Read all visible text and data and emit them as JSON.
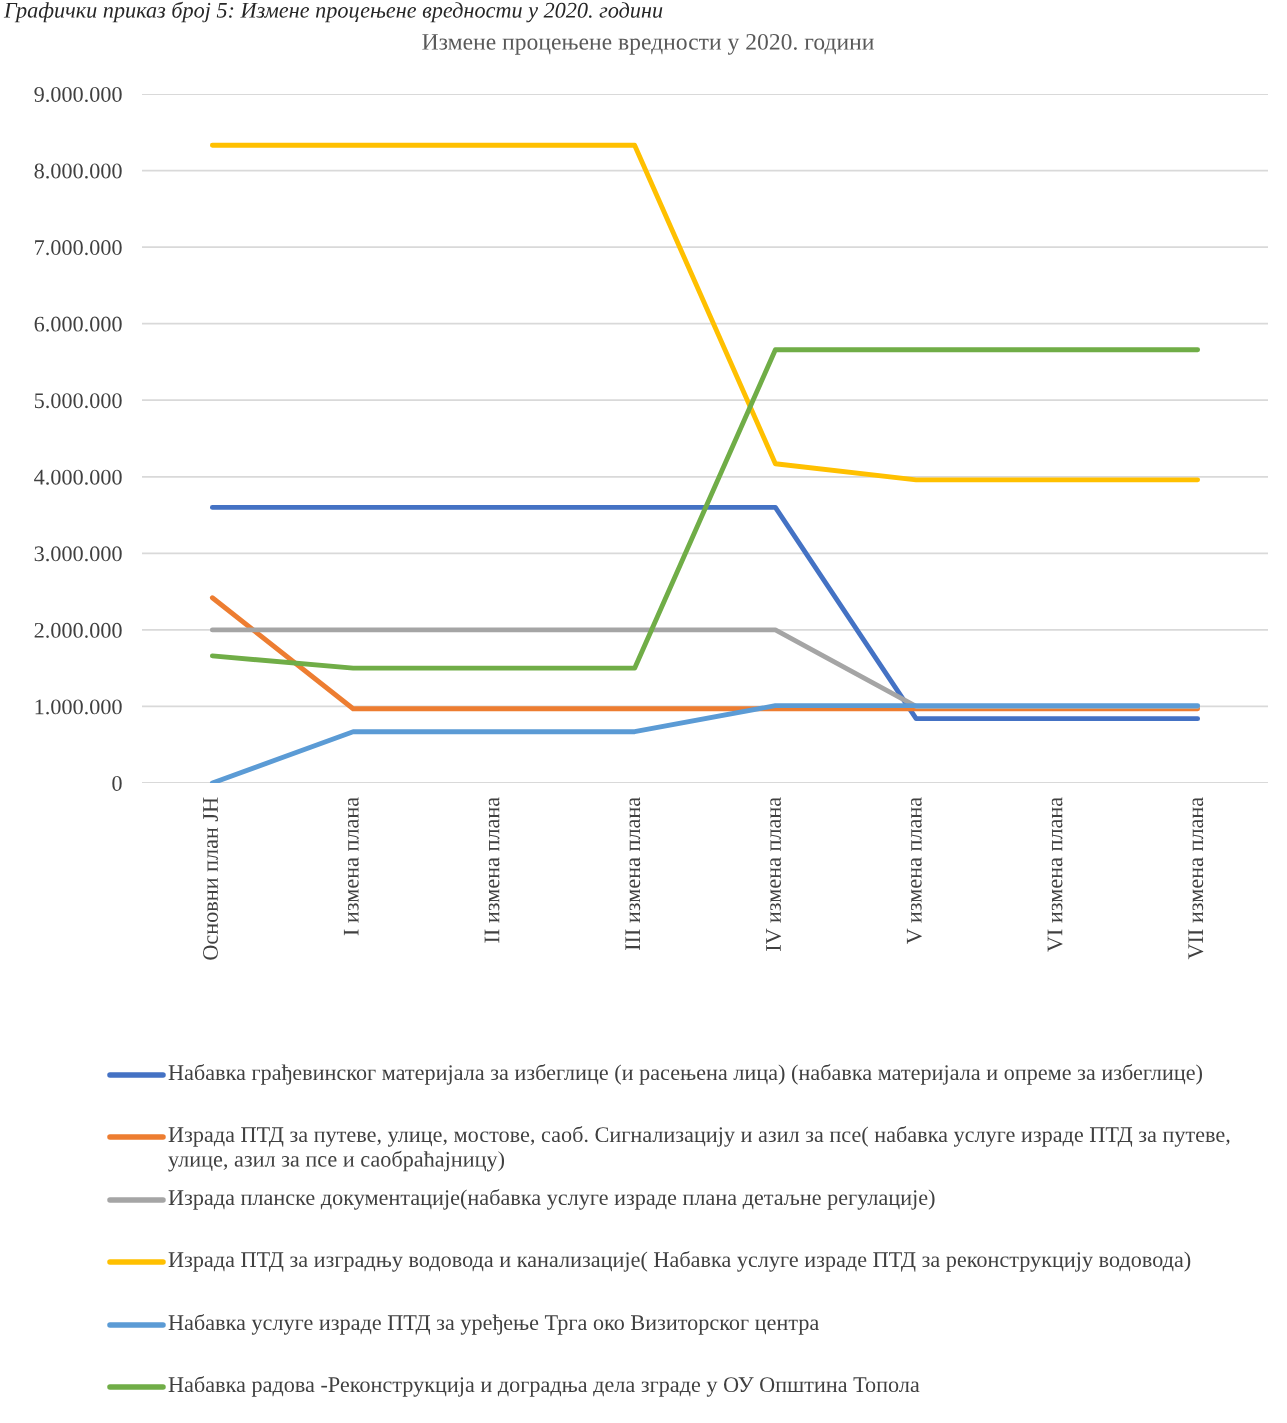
{
  "chart_data": {
    "type": "line",
    "title": "Измене процењене вредности у 2020. години",
    "annotations": [
      "Графички приказ број 5: Измене процењене вредности у 2020. години"
    ],
    "categories": [
      "Основни план ЈН",
      "I измена плана",
      "II измена плана",
      "III измена плана",
      "IV измена плана",
      "V измена плана",
      "VI измена плана",
      "VII измена плана"
    ],
    "series": [
      {
        "name": "Набавка грађевинског материјала за избеглице (и расењена лица) (набавка материјала и опреме за избеглице)",
        "color": "#4472c4",
        "values": [
          3600000,
          3600000,
          3600000,
          3600000,
          3600000,
          840000,
          840000,
          840000
        ]
      },
      {
        "name": "Израда ПТД за путеве, улице, мостове, саоб. Сигнализацију и азил за псе( набавка услуге израде ПТД за путеве, улице, азил за псе и саобраћајницу)",
        "color": "#ed7d31",
        "values": [
          2420000,
          970000,
          970000,
          970000,
          970000,
          970000,
          970000,
          970000
        ]
      },
      {
        "name": "Израда планске документације(набавка услуге израде плана детаљне регулације)",
        "color": "#a5a5a5",
        "values": [
          2000000,
          2000000,
          2000000,
          2000000,
          2000000,
          1000000,
          1000000,
          1000000
        ]
      },
      {
        "name": "Израда ПТД за изградњу водовода и канализације( Набавка услуге израде ПТД за реконструкцију водовода)",
        "color": "#ffc000",
        "values": [
          8330000,
          8330000,
          8330000,
          8330000,
          4170000,
          3960000,
          3960000,
          3960000
        ]
      },
      {
        "name": "Набавка услуге израде ПТД за уређење Трга око Визиторског центра",
        "color": "#5b9bd5",
        "values": [
          0,
          670000,
          670000,
          670000,
          1010000,
          1010000,
          1010000,
          1010000
        ]
      },
      {
        "name": "Набавка радова -Реконструкција и доградња дела зграде у ОУ Општина Топола",
        "color": "#70ad47",
        "values": [
          1660000,
          1500000,
          1500000,
          1500000,
          5660000,
          5660000,
          5660000,
          5660000
        ]
      }
    ],
    "ylim": [
      0,
      9000000
    ],
    "yticks": [
      {
        "value": 0,
        "label": "0"
      },
      {
        "value": 1000000,
        "label": "1.000.000"
      },
      {
        "value": 2000000,
        "label": "2.000.000"
      },
      {
        "value": 3000000,
        "label": "3.000.000"
      },
      {
        "value": 4000000,
        "label": "4.000.000"
      },
      {
        "value": 5000000,
        "label": "5.000.000"
      },
      {
        "value": 6000000,
        "label": "6.000.000"
      },
      {
        "value": 7000000,
        "label": "7.000.000"
      },
      {
        "value": 8000000,
        "label": "8.000.000"
      },
      {
        "value": 9000000,
        "label": "9.000.000"
      }
    ],
    "grid": "y",
    "legend": "bottom",
    "marker": "none",
    "line_style": "solid"
  }
}
